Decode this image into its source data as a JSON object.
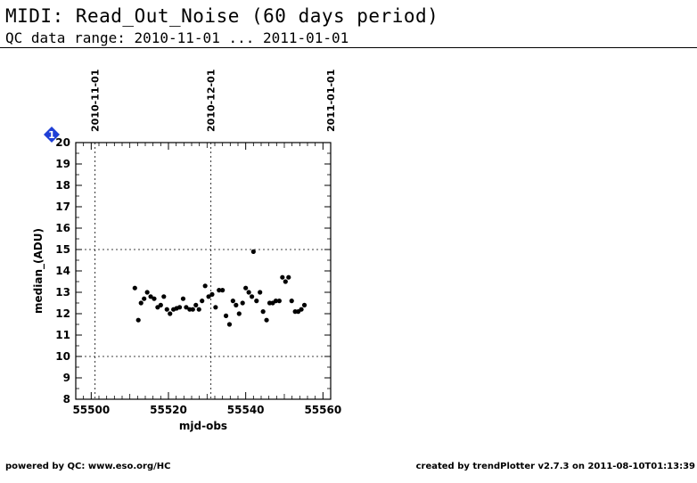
{
  "header": {
    "title": "MIDI: Read_Out_Noise (60 days period)",
    "subtitle": "QC data range: 2010-11-01 ... 2011-01-01"
  },
  "footer": {
    "left": "powered by QC: www.eso.org/HC",
    "right": "created by trendPlotter v2.7.3 on 2011-08-10T01:13:39"
  },
  "chart_data": {
    "type": "scatter",
    "xlabel": "mjd-obs",
    "ylabel": "median_(ADU)",
    "xlim": [
      55496,
      55562
    ],
    "ylim": [
      8,
      20
    ],
    "x_ticks": [
      55500,
      55520,
      55540,
      55560
    ],
    "y_ticks": [
      8,
      9,
      10,
      11,
      12,
      13,
      14,
      15,
      16,
      17,
      18,
      19,
      20
    ],
    "reference_lines_y": [
      10,
      15
    ],
    "date_markers": [
      {
        "x": 55501,
        "label": "2010-11-01"
      },
      {
        "x": 55531,
        "label": "2010-12-01"
      },
      {
        "x": 55562,
        "label": "2011-01-01"
      }
    ],
    "badge": {
      "label": "1",
      "color": "#1f3fd6"
    },
    "marker_color": "#000000",
    "points": [
      [
        55511.3,
        13.2
      ],
      [
        55512.2,
        11.7
      ],
      [
        55512.9,
        12.5
      ],
      [
        55513.7,
        12.7
      ],
      [
        55514.5,
        13.0
      ],
      [
        55515.4,
        12.8
      ],
      [
        55516.3,
        12.7
      ],
      [
        55517.2,
        12.3
      ],
      [
        55518.0,
        12.4
      ],
      [
        55518.8,
        12.8
      ],
      [
        55519.6,
        12.2
      ],
      [
        55520.4,
        12.0
      ],
      [
        55521.3,
        12.2
      ],
      [
        55522.1,
        12.25
      ],
      [
        55522.9,
        12.3
      ],
      [
        55523.8,
        12.7
      ],
      [
        55524.6,
        12.3
      ],
      [
        55525.5,
        12.2
      ],
      [
        55526.3,
        12.2
      ],
      [
        55527.1,
        12.4
      ],
      [
        55527.9,
        12.2
      ],
      [
        55528.7,
        12.6
      ],
      [
        55529.5,
        13.3
      ],
      [
        55530.4,
        12.8
      ],
      [
        55531.3,
        12.9
      ],
      [
        55532.2,
        12.3
      ],
      [
        55533.1,
        13.1
      ],
      [
        55534.0,
        13.1
      ],
      [
        55534.9,
        11.9
      ],
      [
        55535.8,
        11.5
      ],
      [
        55536.7,
        12.6
      ],
      [
        55537.5,
        12.4
      ],
      [
        55538.3,
        12.0
      ],
      [
        55539.2,
        12.5
      ],
      [
        55540.0,
        13.2
      ],
      [
        55540.8,
        13.0
      ],
      [
        55541.6,
        12.8
      ],
      [
        55542.0,
        14.9
      ],
      [
        55542.8,
        12.6
      ],
      [
        55543.7,
        13.0
      ],
      [
        55544.5,
        12.1
      ],
      [
        55545.4,
        11.7
      ],
      [
        55546.2,
        12.5
      ],
      [
        55547.0,
        12.5
      ],
      [
        55547.8,
        12.6
      ],
      [
        55548.7,
        12.6
      ],
      [
        55549.5,
        13.7
      ],
      [
        55550.3,
        13.5
      ],
      [
        55551.1,
        13.7
      ],
      [
        55551.9,
        12.6
      ],
      [
        55552.8,
        12.1
      ],
      [
        55553.6,
        12.1
      ],
      [
        55554.4,
        12.2
      ],
      [
        55555.2,
        12.4
      ]
    ]
  }
}
